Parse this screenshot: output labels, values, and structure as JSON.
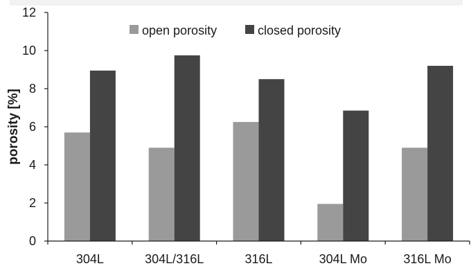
{
  "chart_data": {
    "type": "bar",
    "title": "",
    "xlabel": "",
    "ylabel": "porosity [%]",
    "ylim": [
      0,
      12
    ],
    "yticks": [
      0,
      2,
      4,
      6,
      8,
      10,
      12
    ],
    "grid": false,
    "legend_position": "top-center",
    "categories": [
      "304L",
      "304L/316L",
      "316L",
      "304L Mo",
      "316L Mo"
    ],
    "series": [
      {
        "name": "open porosity",
        "color": "#9a9a9a",
        "values": [
          5.7,
          4.9,
          6.25,
          1.95,
          4.9
        ]
      },
      {
        "name": "closed porosity",
        "color": "#444444",
        "values": [
          8.95,
          9.75,
          8.5,
          6.85,
          9.2
        ]
      }
    ]
  }
}
